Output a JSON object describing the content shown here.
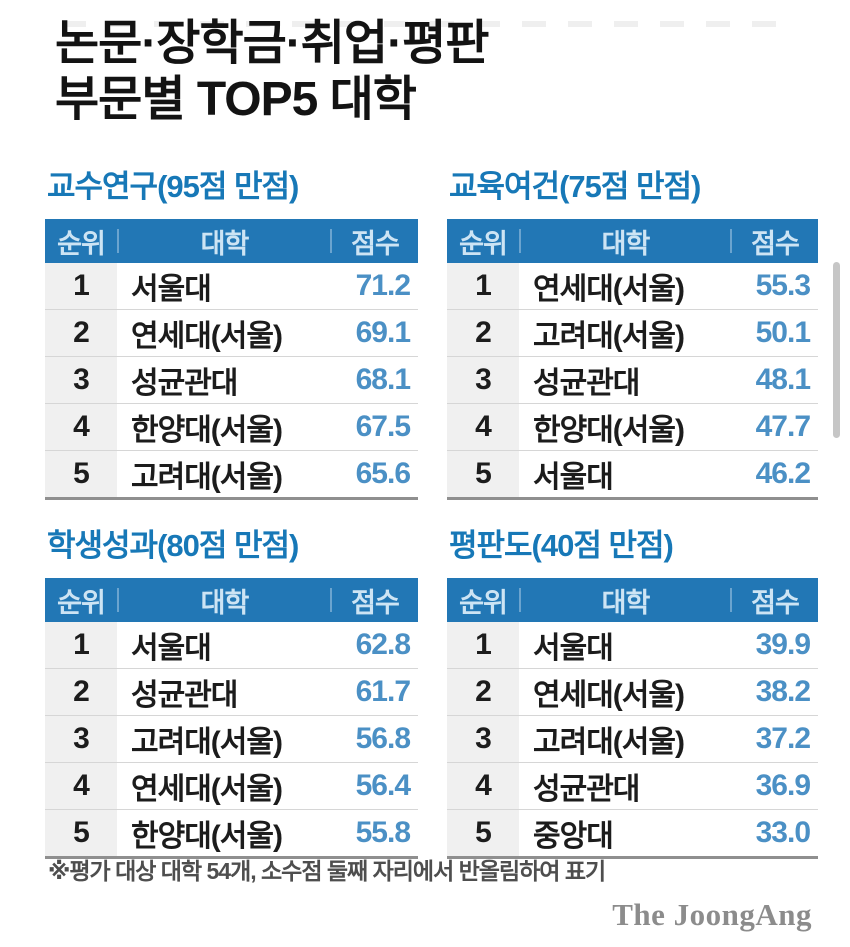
{
  "title": {
    "line1": "논문·장학금·취업·평판",
    "line2": "부문별 TOP5 대학"
  },
  "columns": {
    "rank": "순위",
    "university": "대학",
    "score": "점수"
  },
  "chart_data": [
    {
      "type": "table",
      "title": "교수연구(95점 만점)",
      "max_score": 95,
      "columns": [
        "순위",
        "대학",
        "점수"
      ],
      "rows": [
        {
          "rank": "1",
          "university": "서울대",
          "score": "71.2"
        },
        {
          "rank": "2",
          "university": "연세대(서울)",
          "score": "69.1"
        },
        {
          "rank": "3",
          "university": "성균관대",
          "score": "68.1"
        },
        {
          "rank": "4",
          "university": "한양대(서울)",
          "score": "67.5"
        },
        {
          "rank": "5",
          "university": "고려대(서울)",
          "score": "65.6"
        }
      ]
    },
    {
      "type": "table",
      "title": "교육여건(75점 만점)",
      "max_score": 75,
      "columns": [
        "순위",
        "대학",
        "점수"
      ],
      "rows": [
        {
          "rank": "1",
          "university": "연세대(서울)",
          "score": "55.3"
        },
        {
          "rank": "2",
          "university": "고려대(서울)",
          "score": "50.1"
        },
        {
          "rank": "3",
          "university": "성균관대",
          "score": "48.1"
        },
        {
          "rank": "4",
          "university": "한양대(서울)",
          "score": "47.7"
        },
        {
          "rank": "5",
          "university": "서울대",
          "score": "46.2"
        }
      ]
    },
    {
      "type": "table",
      "title": "학생성과(80점 만점)",
      "max_score": 80,
      "columns": [
        "순위",
        "대학",
        "점수"
      ],
      "rows": [
        {
          "rank": "1",
          "university": "서울대",
          "score": "62.8"
        },
        {
          "rank": "2",
          "university": "성균관대",
          "score": "61.7"
        },
        {
          "rank": "3",
          "university": "고려대(서울)",
          "score": "56.8"
        },
        {
          "rank": "4",
          "university": "연세대(서울)",
          "score": "56.4"
        },
        {
          "rank": "5",
          "university": "한양대(서울)",
          "score": "55.8"
        }
      ]
    },
    {
      "type": "table",
      "title": "평판도(40점 만점)",
      "max_score": 40,
      "columns": [
        "순위",
        "대학",
        "점수"
      ],
      "rows": [
        {
          "rank": "1",
          "university": "서울대",
          "score": "39.9"
        },
        {
          "rank": "2",
          "university": "연세대(서울)",
          "score": "38.2"
        },
        {
          "rank": "3",
          "university": "고려대(서울)",
          "score": "37.2"
        },
        {
          "rank": "4",
          "university": "성균관대",
          "score": "36.9"
        },
        {
          "rank": "5",
          "university": "중앙대",
          "score": "33.0"
        }
      ]
    }
  ],
  "footnote": "※평가 대상 대학 54개, 소수점 둘째 자리에서 반올림하여 표기",
  "brand": "The JoongAng",
  "colors": {
    "header_bg": "#2277b5",
    "header_text": "#cde4f4",
    "section_title": "#1778b7",
    "score_text": "#4b90c5",
    "rank_col_bg": "#f0f0f0",
    "row_divider": "#d6d6d6",
    "table_bottom_border": "#8f8f8f",
    "footnote_text": "#4e4e4e",
    "brand_text": "#8c8c8c"
  }
}
